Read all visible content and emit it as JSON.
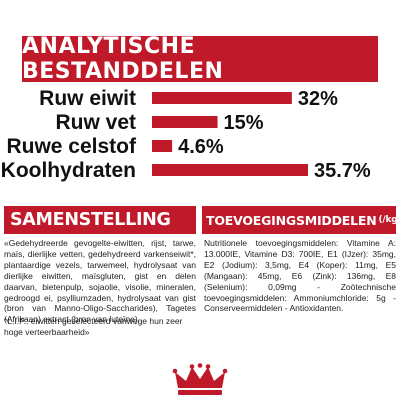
{
  "header": {
    "title": "ANALYTISCHE BESTANDDELEN"
  },
  "chart_data": {
    "type": "bar",
    "orientation": "horizontal",
    "title": "ANALYTISCHE BESTANDDELEN",
    "categories": [
      "Ruw eiwit",
      "Ruw vet",
      "Ruwe celstof",
      "Koolhydraten"
    ],
    "values": [
      32,
      15,
      4.6,
      35.7
    ],
    "value_labels": [
      "32%",
      "15%",
      "4.6%",
      "35.7%"
    ],
    "xlim": [
      0,
      35.7
    ],
    "grid": false,
    "legend": "none",
    "bar_color": "#c01a2a"
  },
  "composition": {
    "title": "SAMENSTELLING",
    "text": "«Gedehydreerde gevogelte-eiwitten, rijst, tarwe, maïs, dierlijke vetten, gedehydreerd varkenseiwit*, plantaardige vezels, tarwemeel, hydrolysaat van dierlijke eiwitten, maïsgluten, gist en delen daarvan, bietenpulp, sojaolie, visolie, mineralen, gedroogd ei, psylliumzaden, hydrolysaat van gist (bron van Manno-Oligo-Saccharides), Tagetes (Afrikaan) extract (bron van luteïne).",
    "footnote": "*L.I.P.: eiwitten geselecteerd vanwege hun zeer hoge verteerbaarheid»"
  },
  "additives": {
    "title": "TOEVOEGINGSMIDDELEN",
    "unit": "(/kg)",
    "text": "Nutritionele toevoegingsmiddelen: Vitamine A: 13.000IE, Vitamine D3: 700IE, E1 (IJzer): 35mg, E2 (Jodium): 3,5mg, E4 (Koper): 11mg, E5 (Mangaan): 45mg, E6 (Zink): 136mg, E8 (Selenium): 0,09mg - Zoötechnische toevoegingsmiddelen: Ammoniumchloride: 5g - Conserveermiddelen - Antioxidanten."
  },
  "colors": {
    "brand_red": "#c01a2a",
    "text": "#222222"
  },
  "icons": {
    "brand_logo": "crown-logo-icon"
  }
}
